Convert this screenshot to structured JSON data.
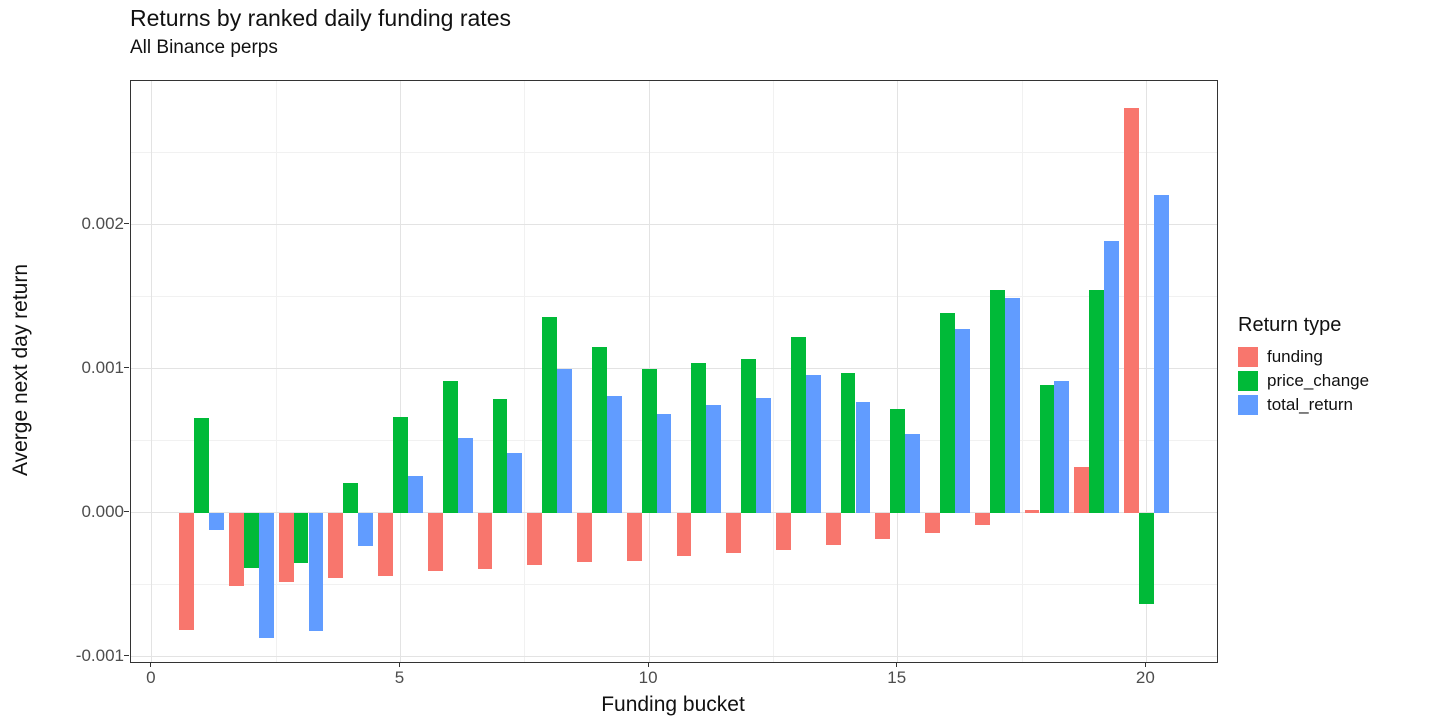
{
  "chart_data": {
    "type": "bar",
    "title": "Returns by ranked daily funding rates",
    "subtitle": "All Binance perps",
    "xlabel": "Funding bucket",
    "ylabel": "Averge next day return",
    "legend_title": "Return type",
    "legend_position": "right",
    "grid": true,
    "background": "#ffffff",
    "panel_border_color": "#333333",
    "categories": [
      1,
      2,
      3,
      4,
      5,
      6,
      7,
      8,
      9,
      10,
      11,
      12,
      13,
      14,
      15,
      16,
      17,
      18,
      19,
      20
    ],
    "series": [
      {
        "name": "funding",
        "color": "#F8766D",
        "values": [
          -0.00081,
          -0.00051,
          -0.00048,
          -0.00045,
          -0.00044,
          -0.0004,
          -0.00039,
          -0.00036,
          -0.00034,
          -0.00033,
          -0.0003,
          -0.00028,
          -0.00026,
          -0.00022,
          -0.00018,
          -0.00014,
          -8e-05,
          2e-05,
          0.00032,
          0.00281
        ]
      },
      {
        "name": "price_change",
        "color": "#00BA38",
        "values": [
          0.00066,
          -0.00038,
          -0.00035,
          0.00021,
          0.00067,
          0.00092,
          0.00079,
          0.00136,
          0.00115,
          0.001,
          0.00104,
          0.00107,
          0.00122,
          0.00097,
          0.00072,
          0.00139,
          0.00155,
          0.00089,
          0.00155,
          -0.00063
        ]
      },
      {
        "name": "total_return",
        "color": "#619CFF",
        "values": [
          -0.00012,
          -0.00087,
          -0.00082,
          -0.00023,
          0.00026,
          0.00052,
          0.00042,
          0.001,
          0.00081,
          0.00069,
          0.00075,
          0.0008,
          0.00096,
          0.00077,
          0.00055,
          0.00128,
          0.00149,
          0.00092,
          0.00189,
          0.00221
        ]
      }
    ],
    "xlim": [
      -0.42,
      21.42
    ],
    "ylim": [
      -0.001035,
      0.003
    ],
    "xticks": [
      0,
      5,
      10,
      15,
      20
    ],
    "xtick_labels": [
      "0",
      "5",
      "10",
      "15",
      "20"
    ],
    "x_minor_ticks": [
      2.5,
      7.5,
      12.5,
      17.5
    ],
    "yticks": [
      -0.001,
      0,
      0.001,
      0.002
    ],
    "ytick_labels": [
      "-0.001",
      "0.000",
      "0.001",
      "0.002"
    ],
    "y_minor_ticks": [
      -0.0005,
      0.0005,
      0.0015,
      0.0025
    ],
    "grid_major_color": "#e3e3e3",
    "grid_minor_color": "#f1f1f1"
  }
}
